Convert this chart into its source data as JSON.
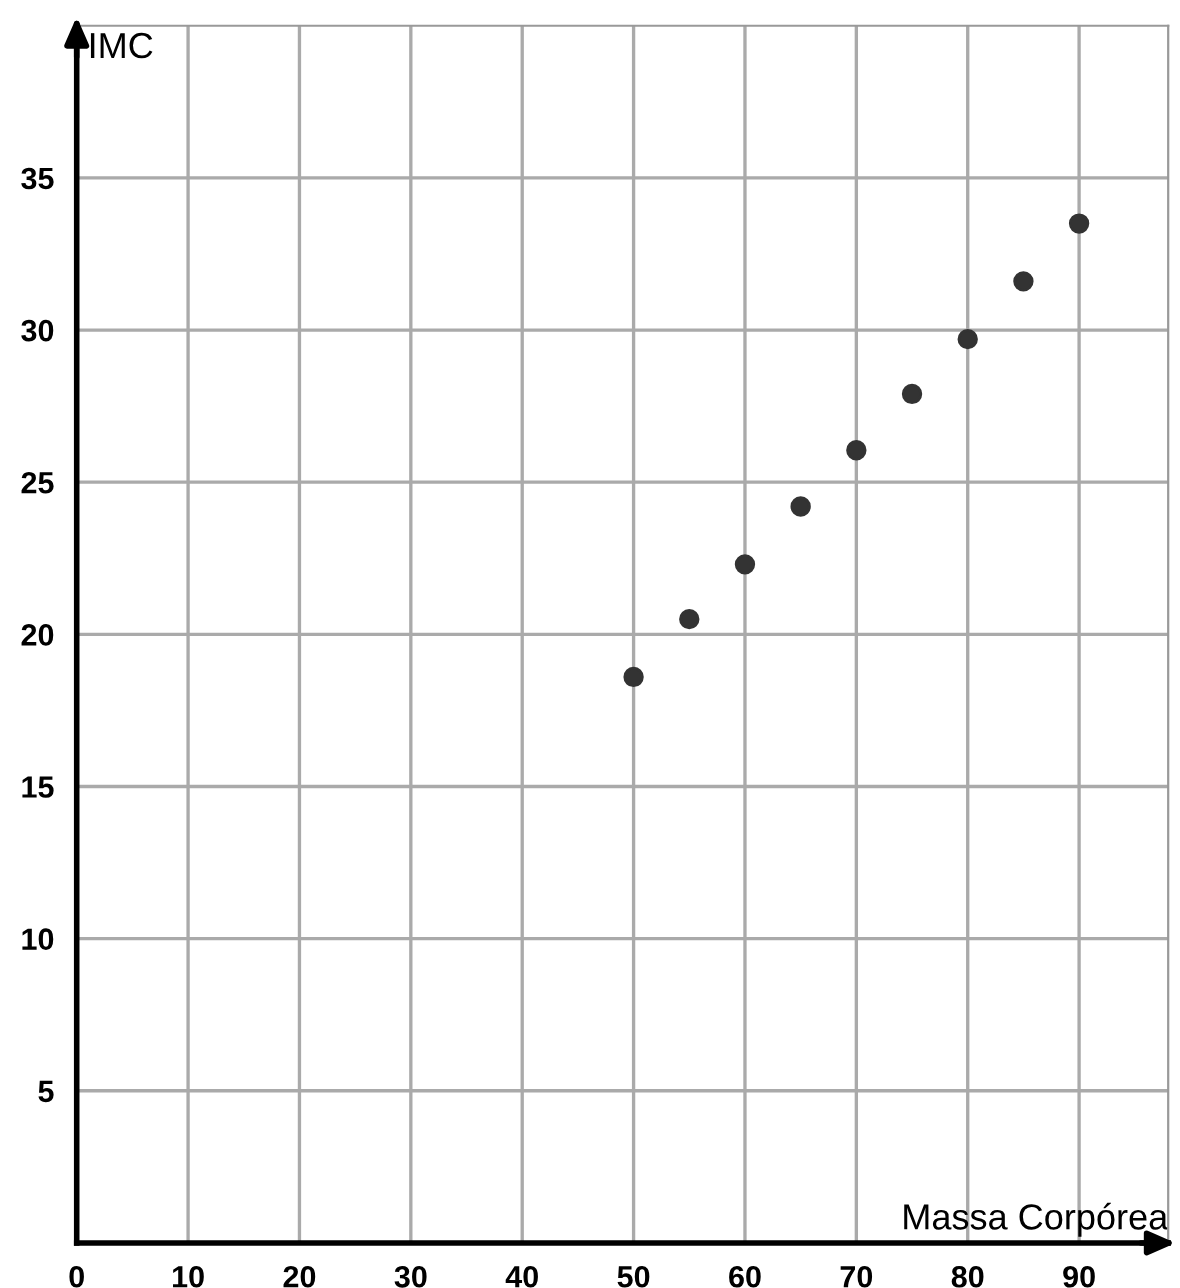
{
  "chart_data": {
    "type": "scatter",
    "xlabel": "Massa Corpórea",
    "ylabel": "IMC",
    "x": [
      50,
      55,
      60,
      65,
      70,
      75,
      80,
      85,
      90
    ],
    "series": [
      {
        "color": "#333333",
        "values": [
          18.6,
          20.5,
          22.3,
          24.2,
          26.05,
          27.9,
          29.7,
          31.6,
          33.5
        ]
      }
    ],
    "xlim": [
      0,
      98
    ],
    "ylim": [
      0,
      40
    ],
    "xticks": [
      0,
      10,
      20,
      30,
      40,
      50,
      60,
      70,
      80,
      90
    ],
    "yticks": [
      5,
      10,
      15,
      20,
      25,
      30,
      35
    ],
    "grid": true,
    "marker": "circle",
    "legend": false
  }
}
